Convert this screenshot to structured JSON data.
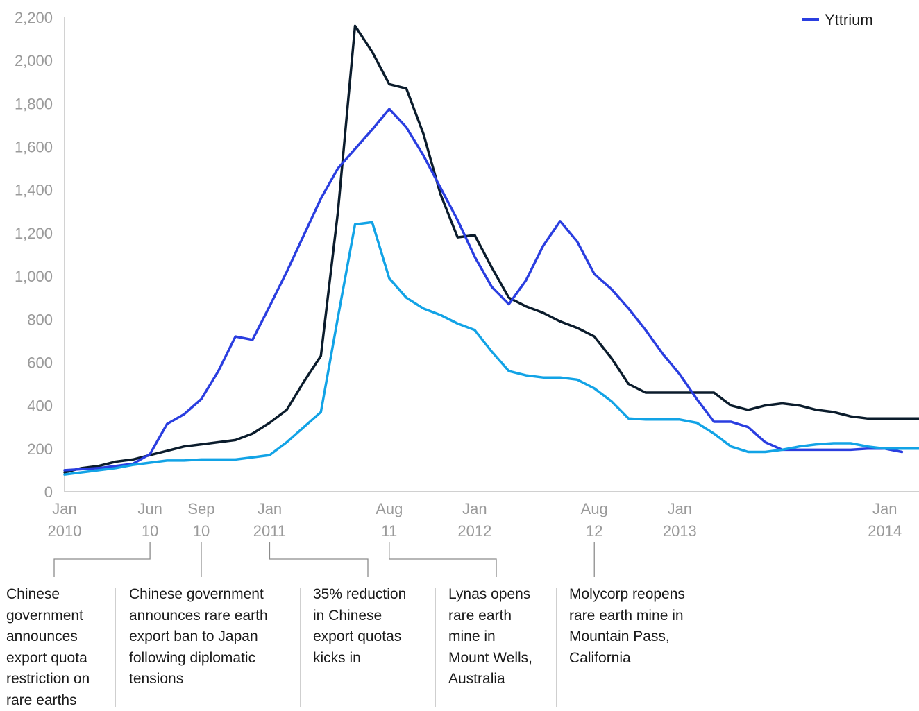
{
  "chart_data": {
    "type": "line",
    "x_ticks": [
      {
        "line1": "Jan",
        "line2": "2010"
      },
      {
        "line1": "Jun",
        "line2": "10"
      },
      {
        "line1": "Sep",
        "line2": "10"
      },
      {
        "line1": "Jan",
        "line2": "2011"
      },
      {
        "line1": "Aug",
        "line2": "11"
      },
      {
        "line1": "Jan",
        "line2": "2012"
      },
      {
        "line1": "Aug",
        "line2": "12"
      },
      {
        "line1": "Jan",
        "line2": "2013"
      },
      {
        "line1": "Jan",
        "line2": "2014"
      }
    ],
    "x_tick_months": [
      0,
      5,
      8,
      12,
      19,
      24,
      31,
      36,
      48
    ],
    "xlim": [
      0,
      50
    ],
    "ylim": [
      0,
      2200
    ],
    "y_ticks": [
      0,
      200,
      400,
      600,
      800,
      1000,
      1200,
      1400,
      1600,
      1800,
      2000,
      2200
    ],
    "y_tick_labels": [
      "0",
      "200",
      "400",
      "600",
      "800",
      "1,000",
      "1,200",
      "1,400",
      "1,600",
      "1,800",
      "2,000",
      "2,200"
    ],
    "legend_position": "top-right",
    "series": [
      {
        "name": "",
        "color": "#0b1c2c",
        "x": [
          0,
          1,
          2,
          3,
          4,
          5,
          6,
          7,
          8,
          9,
          10,
          11,
          12,
          13,
          14,
          15,
          16,
          17,
          18,
          19,
          20,
          21,
          22,
          23,
          24,
          25,
          26,
          27,
          28,
          29,
          30,
          31,
          32,
          33,
          34,
          35,
          36,
          37,
          38,
          39,
          40,
          41,
          42,
          43,
          44,
          45,
          46,
          47,
          48,
          49,
          50
        ],
        "values": [
          90,
          110,
          120,
          140,
          150,
          170,
          190,
          210,
          220,
          230,
          240,
          270,
          320,
          380,
          510,
          630,
          1300,
          2160,
          2040,
          1890,
          1870,
          1660,
          1380,
          1180,
          1190,
          1040,
          900,
          860,
          830,
          790,
          760,
          720,
          620,
          500,
          460,
          460,
          460,
          460,
          460,
          400,
          380,
          400,
          410,
          400,
          380,
          370,
          350,
          340,
          340,
          340,
          340
        ]
      },
      {
        "name": "Yttrium",
        "color": "#2a3ee0",
        "x": [
          0,
          1,
          2,
          3,
          4,
          5,
          6,
          7,
          8,
          9,
          10,
          11,
          12,
          13,
          14,
          15,
          16,
          17,
          18,
          19,
          20,
          21,
          22,
          23,
          24,
          25,
          26,
          27,
          28,
          29,
          30,
          31,
          32,
          33,
          34,
          35,
          36,
          37,
          38,
          39,
          40,
          41,
          42,
          43,
          44,
          45,
          46,
          47,
          48,
          49
        ],
        "values": [
          100,
          105,
          110,
          120,
          130,
          175,
          315,
          360,
          430,
          560,
          720,
          705,
          860,
          1020,
          1190,
          1360,
          1500,
          1590,
          1680,
          1775,
          1690,
          1560,
          1410,
          1260,
          1090,
          950,
          870,
          980,
          1140,
          1255,
          1160,
          1010,
          940,
          850,
          750,
          640,
          545,
          430,
          325,
          325,
          300,
          230,
          195,
          195,
          195,
          195,
          195,
          200,
          200,
          185
        ]
      },
      {
        "name": "",
        "color": "#12a3e6",
        "x": [
          0,
          1,
          2,
          3,
          4,
          5,
          6,
          7,
          8,
          9,
          10,
          11,
          12,
          13,
          14,
          15,
          16,
          17,
          18,
          19,
          20,
          21,
          22,
          23,
          24,
          25,
          26,
          27,
          28,
          29,
          30,
          31,
          32,
          33,
          34,
          35,
          36,
          37,
          38,
          39,
          40,
          41,
          42,
          43,
          44,
          45,
          46,
          47,
          48,
          49,
          50
        ],
        "values": [
          80,
          90,
          100,
          110,
          125,
          135,
          145,
          145,
          150,
          150,
          150,
          160,
          170,
          230,
          300,
          370,
          810,
          1240,
          1250,
          990,
          900,
          850,
          820,
          780,
          750,
          650,
          560,
          540,
          530,
          530,
          520,
          480,
          420,
          340,
          335,
          335,
          335,
          320,
          270,
          210,
          185,
          185,
          195,
          210,
          220,
          225,
          225,
          210,
          200,
          200,
          200
        ]
      }
    ],
    "events": [
      {
        "label": "Chinese government announces export quota restriction on rare earths",
        "x_start": 0,
        "x_end": 5
      },
      {
        "label": "Chinese government announces rare earth export ban to Japan following diplomatic tensions",
        "x_start": 8,
        "x_end": 8
      },
      {
        "label": "35% reduction in Chinese export quotas kicks in",
        "x_start": 12,
        "x_end": 18
      },
      {
        "label": "Lynas opens rare earth mine in Mount Wells, Australia",
        "x_start": 19,
        "x_end": 25
      },
      {
        "label": "Molycorp reopens rare earth mine in Mountain Pass, California",
        "x_start": 31,
        "x_end": 31
      }
    ]
  },
  "annotations": [
    {
      "lines": [
        "Chinese",
        "government",
        "announces",
        "export quota",
        "restriction on",
        "rare earths"
      ]
    },
    {
      "lines": [
        "Chinese government",
        "announces rare earth",
        "export ban to Japan",
        "following diplomatic",
        "tensions"
      ]
    },
    {
      "lines": [
        "35% reduction",
        "in Chinese",
        "export quotas",
        "kicks in"
      ]
    },
    {
      "lines": [
        "Lynas opens",
        "rare earth",
        "mine in",
        "Mount Wells,",
        "Australia"
      ]
    },
    {
      "lines": [
        "Molycorp reopens",
        "rare earth mine in",
        "Mountain Pass,",
        "California"
      ]
    }
  ]
}
